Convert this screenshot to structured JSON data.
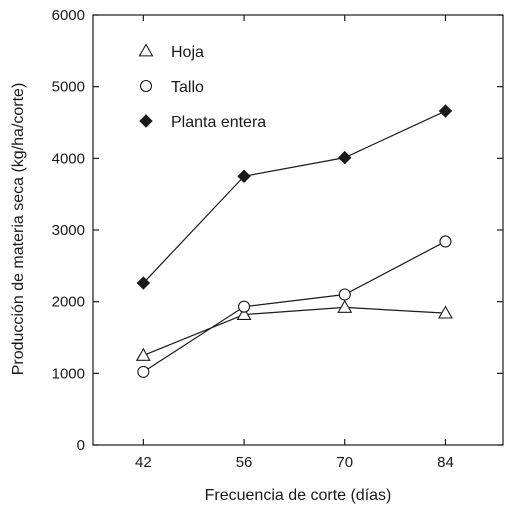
{
  "chart_data": {
    "type": "line",
    "title": "",
    "xlabel": "Frecuencia de corte (días)",
    "ylabel": "Producción de materia seca (kg/ha/corte)",
    "x": [
      42,
      56,
      70,
      84
    ],
    "xlim": [
      35,
      92
    ],
    "ylim": [
      0,
      6000
    ],
    "yticks": [
      0,
      1000,
      2000,
      3000,
      4000,
      5000,
      6000
    ],
    "grid": false,
    "legend_position": "top-left",
    "series": [
      {
        "name": "Hoja",
        "marker": "triangle-open",
        "values": [
          1250,
          1820,
          1920,
          1840
        ]
      },
      {
        "name": "Tallo",
        "marker": "circle-open",
        "values": [
          1020,
          1930,
          2100,
          2840
        ]
      },
      {
        "name": "Planta entera",
        "marker": "diamond-filled",
        "values": [
          2260,
          3750,
          4010,
          4660
        ]
      }
    ]
  }
}
